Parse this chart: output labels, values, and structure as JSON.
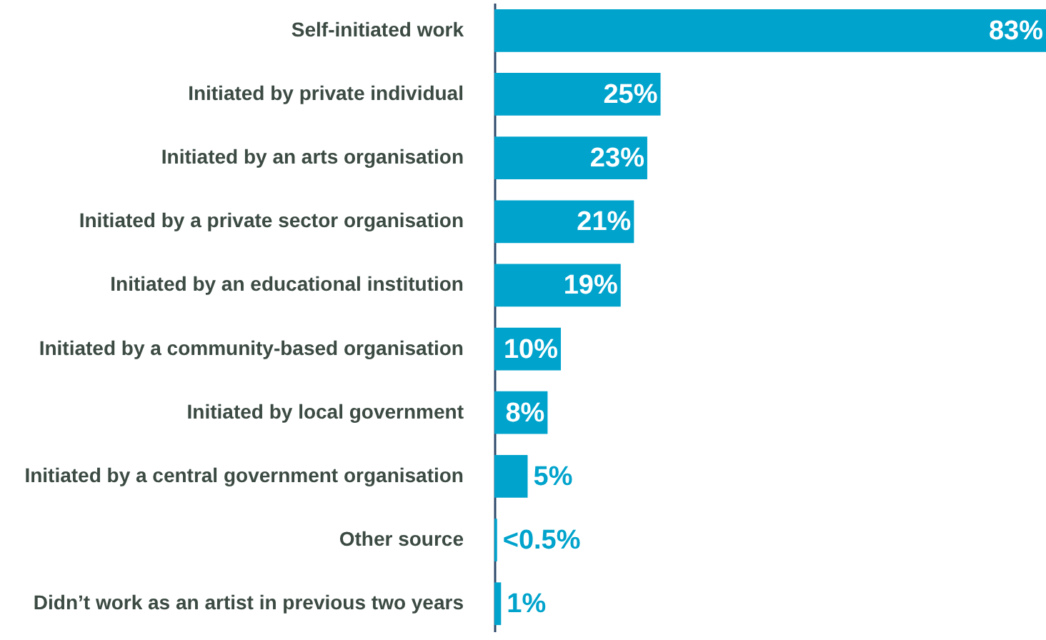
{
  "chart_data": {
    "type": "bar",
    "orientation": "horizontal",
    "color": "#00a3cc",
    "categories": [
      "Self-initiated work",
      "Initiated by private individual",
      "Initiated by an arts organisation",
      "Initiated by a private sector organisation",
      "Initiated by an educational institution",
      "Initiated by a community-based organisation",
      "Initiated by local government",
      "Initiated by a central government organisation",
      "Other source",
      "Didn’t work as an artist in previous two years"
    ],
    "values": [
      83,
      25,
      23,
      21,
      19,
      10,
      8,
      5,
      0.4,
      1
    ],
    "value_labels": [
      "83%",
      "25%",
      "23%",
      "21%",
      "19%",
      "10%",
      "8%",
      "5%",
      "<0.5%",
      "1%"
    ]
  }
}
